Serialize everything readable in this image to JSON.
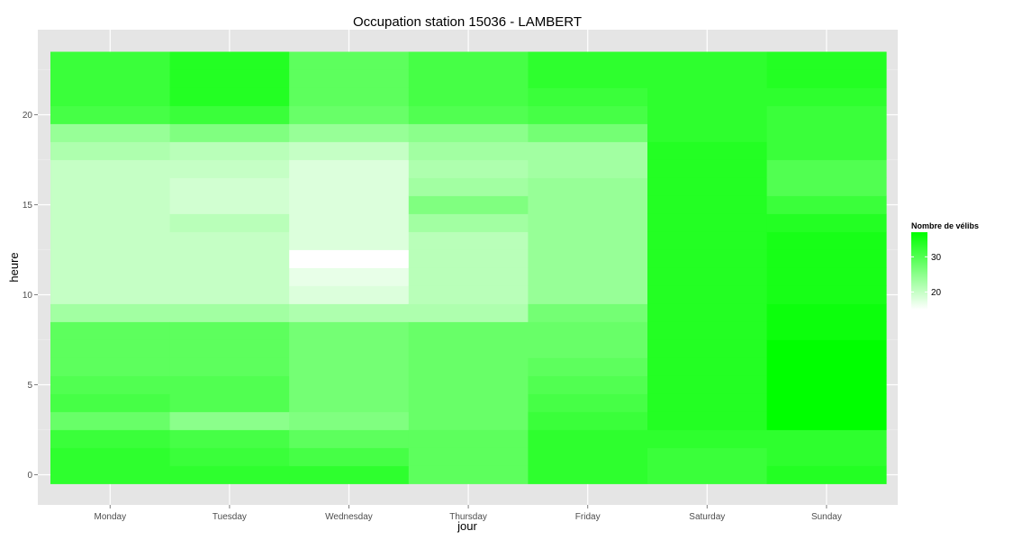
{
  "chart_data": {
    "type": "heatmap",
    "title": "Occupation station 15036 - LAMBERT",
    "xlabel": "jour",
    "ylabel": "heure",
    "x_categories": [
      "Monday",
      "Tuesday",
      "Wednesday",
      "Thursday",
      "Friday",
      "Saturday",
      "Sunday"
    ],
    "y_ticks": [
      0,
      5,
      10,
      15,
      20
    ],
    "ylim": [
      -0.5,
      23.5
    ],
    "grid": true,
    "legend": {
      "title": "Nombre de vélibs",
      "position": "right",
      "ticks": [
        20,
        30
      ],
      "range": [
        15,
        37
      ],
      "low_color": "#ffffff",
      "high_color": "#00ff00"
    },
    "hours": [
      0,
      1,
      2,
      3,
      4,
      5,
      6,
      7,
      8,
      9,
      10,
      11,
      12,
      13,
      14,
      15,
      16,
      17,
      18,
      19,
      20,
      21,
      22,
      23
    ],
    "values": [
      [
        33,
        33,
        32,
        28,
        31,
        30,
        29,
        29,
        29,
        23,
        20,
        20,
        20,
        20,
        20,
        20,
        20,
        20,
        22,
        24,
        31,
        32,
        32,
        32
      ],
      [
        33,
        32,
        31,
        25,
        30,
        30,
        29,
        29,
        29,
        23,
        20,
        20,
        20,
        20,
        21,
        19,
        19,
        20,
        21,
        26,
        32,
        34,
        34,
        34
      ],
      [
        33,
        31,
        29,
        26,
        27,
        27,
        27,
        27,
        27,
        22,
        18,
        17,
        15,
        18,
        18,
        18,
        18,
        18,
        20,
        24,
        28,
        29,
        29,
        29
      ],
      [
        29,
        29,
        29,
        28,
        28,
        28,
        28,
        28,
        28,
        22,
        21,
        21,
        21,
        21,
        23,
        26,
        23,
        22,
        23,
        25,
        30,
        31,
        31,
        31
      ],
      [
        33,
        33,
        33,
        32,
        31,
        30,
        29,
        28,
        28,
        27,
        24,
        24,
        24,
        24,
        24,
        24,
        24,
        23,
        23,
        27,
        31,
        32,
        33,
        33
      ],
      [
        32,
        32,
        33,
        34,
        34,
        34,
        34,
        34,
        34,
        34,
        34,
        34,
        34,
        34,
        34,
        34,
        34,
        34,
        34,
        33,
        33,
        33,
        33,
        33
      ],
      [
        34,
        33,
        33,
        37,
        37,
        37,
        37,
        37,
        36,
        36,
        35,
        35,
        35,
        35,
        34,
        32,
        30,
        30,
        32,
        32,
        32,
        33,
        34,
        34
      ]
    ]
  }
}
